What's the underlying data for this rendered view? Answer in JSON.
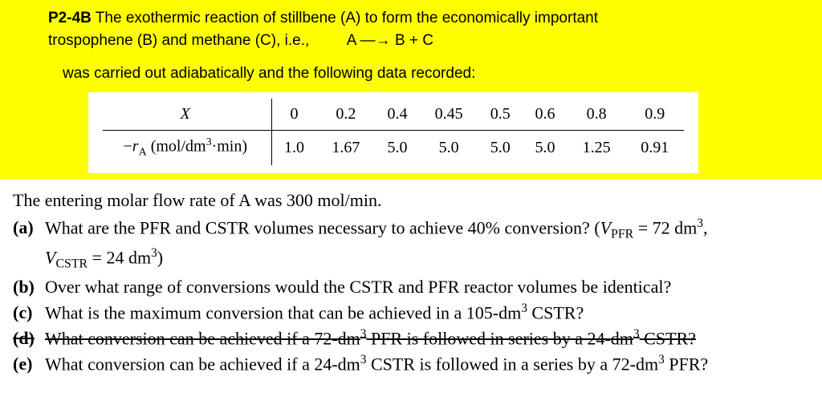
{
  "problem_number": "P2-4B",
  "intro_line1": " The exothermic reaction of stillbene (A) to form the economically important",
  "intro_line2_prefix": "trospophene (B) and methane (C), i.e.,",
  "equation": "A —→ B + C",
  "recorded_line": "was carried out adiabatically and the following data recorded:",
  "table": {
    "row1_label_html": "X",
    "row2_label_prefix": "−",
    "row2_label_var": "r",
    "row2_label_sub": "A",
    "row2_label_units": " (mol/dm",
    "row2_label_units_sup": "3",
    "row2_label_units_end": "·min)",
    "cols_X": [
      "0",
      "0.2",
      "0.4",
      "0.45",
      "0.5",
      "0.6",
      "0.8",
      "0.9"
    ],
    "cols_rA": [
      "1.0",
      "1.67",
      "5.0",
      "5.0",
      "5.0",
      "5.0",
      "1.25",
      "0.91"
    ]
  },
  "lead": "The entering molar flow rate of A was 300 mol/min.",
  "qa": {
    "label": "(a)",
    "text_1": "What are the PFR and CSTR volumes necessary to achieve 40% conversion? (",
    "vpfr_var": "V",
    "vpfr_sub": "PFR",
    "vpfr_eq": " = 72 dm",
    "sup3": "3",
    "comma": ",",
    "vcstr_var": "V",
    "vcstr_sub": "CSTR",
    "vcstr_eq": " = 24 dm",
    "close": ")"
  },
  "qb": {
    "label": "(b)",
    "text": "Over what range of conversions would the CSTR and PFR reactor volumes be identical?"
  },
  "qc": {
    "label": "(c)",
    "text_1": "What is the maximum conversion that can be achieved in a 105-dm",
    "sup3": "3",
    "text_2": " CSTR?"
  },
  "qd": {
    "label": "(d)",
    "text_1": "What conversion can be achieved if a 72-dm",
    "sup3a": "3",
    "text_2": " PFR is followed in series by a 24-dm",
    "sup3b": "3",
    "text_3": " CSTR?"
  },
  "qe": {
    "label": "(e)",
    "text_1": "What conversion can be achieved if a 24-dm",
    "sup3a": "3",
    "text_2": " CSTR is followed in a series by a 72-dm",
    "sup3b": "3",
    "text_3": " PFR?"
  }
}
